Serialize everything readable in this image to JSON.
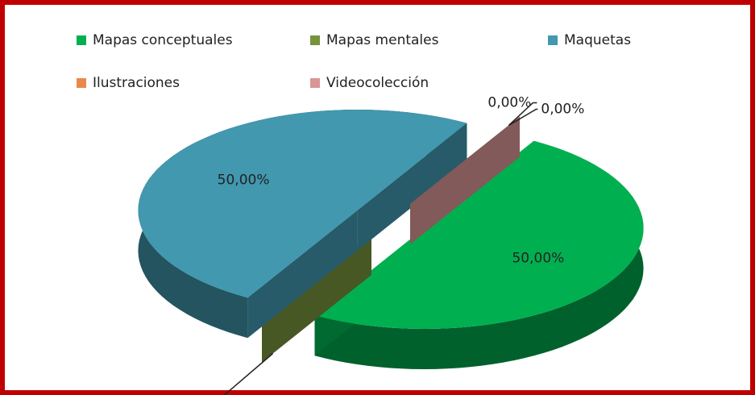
{
  "chart_data": {
    "type": "pie3d",
    "categories": [
      "Mapas conceptuales",
      "Mapas mentales",
      "Maquetas",
      "Ilustraciones",
      "Videocolección"
    ],
    "values": [
      50,
      0,
      50,
      0,
      0
    ],
    "value_labels": [
      "50,00%",
      "0,00%",
      "50,00%",
      "0,00%",
      "0,00%"
    ],
    "colors": [
      "#00b050",
      "#77933c",
      "#4198af",
      "#e8894a",
      "#d99694"
    ],
    "legend": "top"
  }
}
